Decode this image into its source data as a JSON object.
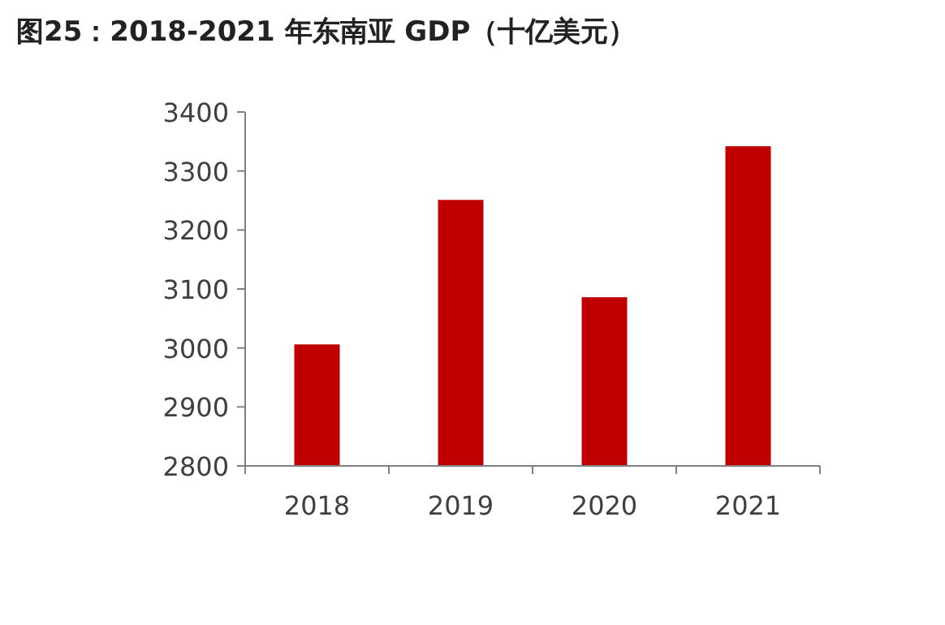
{
  "chart_data": {
    "type": "bar",
    "title": "图25：2018-2021 年东南亚 GDP（十亿美元）",
    "categories": [
      "2018",
      "2019",
      "2020",
      "2021"
    ],
    "values": [
      3006,
      3251,
      3086,
      3342
    ],
    "color": "#c00000",
    "ylim": [
      2800,
      3400
    ],
    "yticks": [
      2800,
      2900,
      3000,
      3100,
      3200,
      3300,
      3400
    ],
    "grid": false
  }
}
